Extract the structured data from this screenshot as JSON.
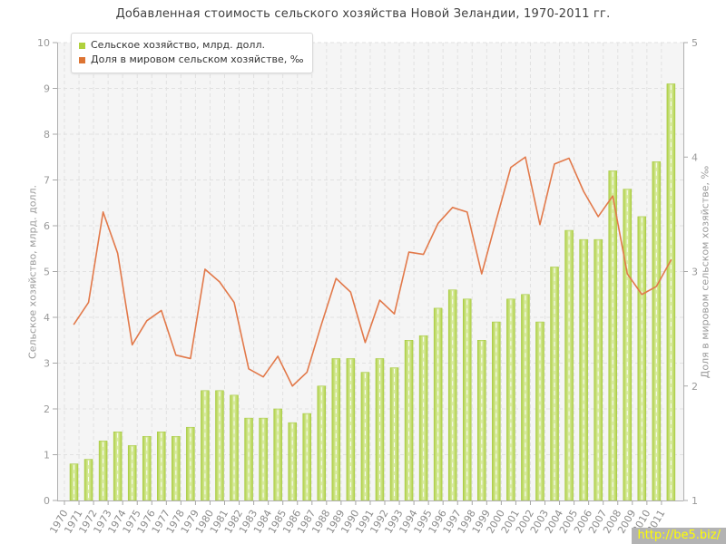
{
  "page": {
    "title": "Добавленная стоимость сельского хозяйства Новой Зеландии, 1970-2011 гг.",
    "watermark": "http://be5.biz/"
  },
  "legend": [
    {
      "label": "Сельское хозяйство, млрд. долл.",
      "color": "#b0d13d"
    },
    {
      "label": "Доля в мировом сельском хозяйстве, ‰",
      "color": "#dd7433"
    }
  ],
  "chart_data": {
    "type": "combo-bar-line",
    "title": "Добавленная стоимость сельского хозяйства Новой Зеландии, 1970-2011 гг.",
    "categories": [
      1970,
      1971,
      1972,
      1973,
      1974,
      1975,
      1976,
      1977,
      1978,
      1979,
      1980,
      1981,
      1982,
      1983,
      1984,
      1985,
      1986,
      1987,
      1988,
      1989,
      1990,
      1991,
      1992,
      1993,
      1994,
      1995,
      1996,
      1997,
      1998,
      1999,
      2000,
      2001,
      2002,
      2003,
      2004,
      2005,
      2006,
      2007,
      2008,
      2009,
      2010,
      2011
    ],
    "series": [
      {
        "name": "Сельское хозяйство, млрд. долл.",
        "type": "bar",
        "axis": "left",
        "color": "#b0d145",
        "color_light": "#dcedaa",
        "values": [
          0.8,
          0.9,
          1.3,
          1.5,
          1.2,
          1.4,
          1.5,
          1.4,
          1.6,
          2.4,
          2.4,
          2.3,
          1.8,
          1.8,
          2.0,
          1.7,
          1.9,
          2.5,
          3.1,
          3.1,
          2.8,
          3.1,
          2.9,
          3.5,
          3.6,
          4.2,
          4.6,
          4.4,
          3.5,
          3.9,
          4.4,
          4.5,
          3.9,
          5.1,
          5.9,
          5.7,
          5.7,
          7.2,
          6.8,
          6.2,
          7.4,
          9.1
        ]
      },
      {
        "name": "Доля в мировом сельском хозяйстве, ‰",
        "type": "line",
        "axis": "right",
        "color": "#e2794a",
        "values": [
          2.54,
          2.73,
          3.52,
          3.16,
          2.36,
          2.57,
          2.66,
          2.27,
          2.24,
          3.02,
          2.91,
          2.73,
          2.15,
          2.08,
          2.26,
          2.0,
          2.12,
          2.54,
          2.94,
          2.82,
          2.38,
          2.75,
          2.63,
          3.17,
          3.15,
          3.42,
          3.56,
          3.52,
          2.98,
          3.45,
          3.91,
          4.0,
          3.41,
          3.94,
          3.99,
          3.7,
          3.48,
          3.66,
          2.98,
          2.8,
          2.87,
          3.1
        ]
      }
    ],
    "left_axis": {
      "title": "Сельское хозяйство, млрд. долл.",
      "min": 0,
      "max": 10,
      "step": 1
    },
    "right_axis": {
      "title": "Доля в мировом сельском хозяйстве, ‰",
      "min": 1,
      "max": 5,
      "step": 1
    },
    "grid": true,
    "legend_position": "top-left"
  }
}
